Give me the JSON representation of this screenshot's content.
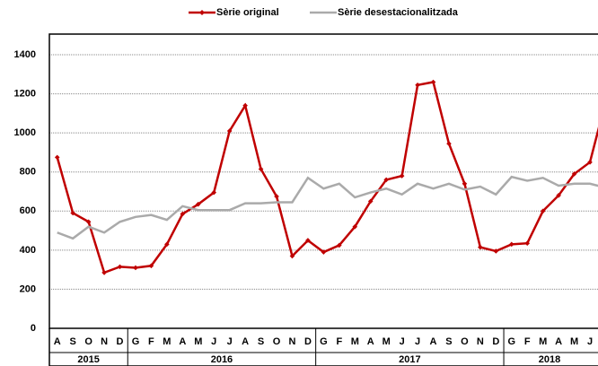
{
  "chart_data": {
    "type": "line",
    "categories": [
      "A",
      "S",
      "O",
      "N",
      "D",
      "G",
      "F",
      "M",
      "A",
      "M",
      "J",
      "J",
      "A",
      "S",
      "O",
      "N",
      "D",
      "G",
      "F",
      "M",
      "A",
      "M",
      "J",
      "J",
      "A",
      "S",
      "O",
      "N",
      "D",
      "G",
      "F",
      "M",
      "A",
      "M",
      "J",
      "J"
    ],
    "years": [
      "2015",
      "2016",
      "2017",
      "2018"
    ],
    "series": [
      {
        "name": "Sèrie original",
        "color": "#c00000",
        "marker": "diamond",
        "values": [
          875,
          590,
          545,
          285,
          315,
          310,
          320,
          430,
          585,
          635,
          695,
          1010,
          1140,
          815,
          675,
          370,
          450,
          390,
          425,
          520,
          650,
          760,
          780,
          1245,
          1260,
          945,
          740,
          415,
          395,
          430,
          435,
          600,
          680,
          790,
          850,
          1160
        ]
      },
      {
        "name": "Sèrie desestacionalitzada",
        "color": "#aaaaaa",
        "values": [
          490,
          460,
          520,
          490,
          545,
          570,
          580,
          555,
          625,
          605,
          605,
          605,
          640,
          640,
          645,
          645,
          770,
          715,
          740,
          670,
          695,
          715,
          685,
          740,
          715,
          740,
          710,
          725,
          685,
          775,
          755,
          770,
          730,
          740,
          740,
          720
        ]
      }
    ],
    "ylim": [
      0,
      1400
    ],
    "yticks": [
      0,
      200,
      400,
      600,
      800,
      1000,
      1200,
      1400
    ],
    "grid": true,
    "legend": "top"
  }
}
